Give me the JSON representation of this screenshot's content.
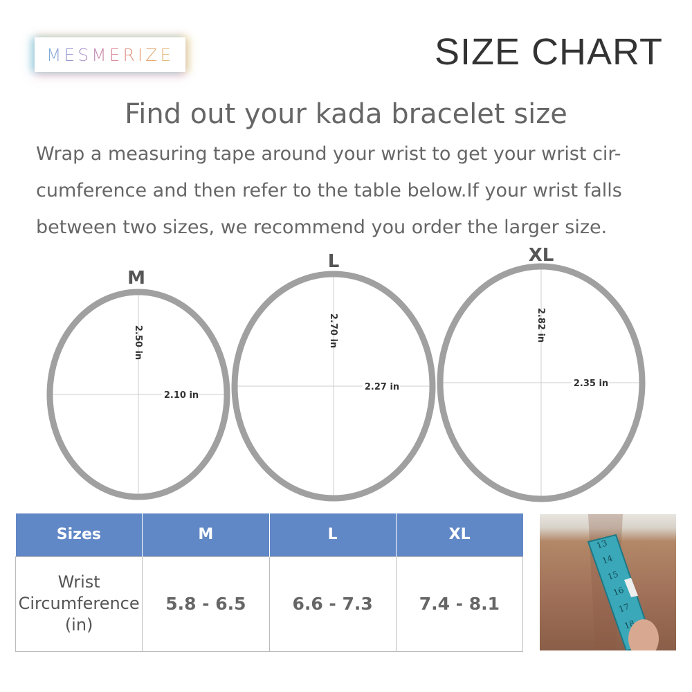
{
  "brand": {
    "logo_text": "MESMERIZE"
  },
  "header": {
    "title": "SIZE CHART"
  },
  "heading": "Find out your kada bracelet size",
  "description": "Wrap a measuring tape around your wrist to get your wrist cir-cumference and then refer to the table below.If your wrist falls between two sizes, we recommend you order the larger size.",
  "rings": [
    {
      "size": "M",
      "height": "2.50 in",
      "width": "2.10 in"
    },
    {
      "size": "L",
      "height": "2.70 in",
      "width": "2.27 in"
    },
    {
      "size": "XL",
      "height": "2.82 in",
      "width": "2.35 in"
    }
  ],
  "table": {
    "headers": [
      "Sizes",
      "M",
      "L",
      "XL"
    ],
    "row_label": [
      "Wrist",
      "Circumference",
      "(in)"
    ],
    "values": [
      "5.8 - 6.5",
      "6.6 - 7.3",
      "7.4 - 8.1"
    ],
    "header_color": "#6188c6"
  },
  "photo": {
    "tape_numbers": [
      "13",
      "14",
      "15",
      "16",
      "17",
      "18"
    ]
  }
}
